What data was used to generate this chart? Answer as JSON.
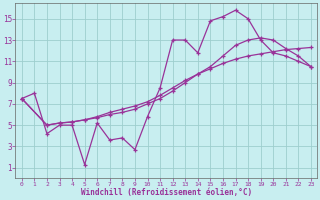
{
  "xlabel": "Windchill (Refroidissement éolien,°C)",
  "bg_color": "#c8eef0",
  "plot_bg": "#c8eef0",
  "line_color": "#993399",
  "grid_color": "#9ecece",
  "xlim": [
    -0.5,
    23.5
  ],
  "ylim": [
    0,
    16.5
  ],
  "yticks": [
    1,
    3,
    5,
    7,
    9,
    11,
    13,
    15
  ],
  "xticks": [
    0,
    1,
    2,
    3,
    4,
    5,
    6,
    7,
    8,
    9,
    10,
    11,
    12,
    13,
    14,
    15,
    16,
    17,
    18,
    19,
    20,
    21,
    22,
    23
  ],
  "line1_x": [
    0,
    1,
    2,
    3,
    4,
    5,
    6,
    7,
    8,
    9,
    10,
    11,
    12,
    13,
    14,
    15,
    16,
    17,
    18,
    19,
    20,
    21,
    22,
    23
  ],
  "line1_y": [
    7.5,
    8.0,
    4.2,
    5.0,
    5.0,
    1.3,
    5.2,
    3.6,
    3.8,
    2.7,
    5.8,
    8.5,
    13.0,
    13.0,
    11.8,
    14.8,
    15.2,
    15.8,
    15.0,
    13.0,
    11.8,
    11.5,
    11.0,
    10.5
  ],
  "line2_x": [
    0,
    2,
    3,
    4,
    5,
    6,
    7,
    8,
    9,
    10,
    11,
    12,
    13,
    14,
    15,
    16,
    17,
    18,
    19,
    20,
    21,
    22,
    23
  ],
  "line2_y": [
    7.5,
    5.0,
    5.2,
    5.3,
    5.5,
    5.7,
    6.0,
    6.2,
    6.5,
    7.0,
    7.5,
    8.2,
    9.0,
    9.8,
    10.5,
    11.5,
    12.5,
    13.0,
    13.2,
    13.0,
    12.2,
    11.5,
    10.5
  ],
  "line3_x": [
    0,
    2,
    3,
    4,
    5,
    6,
    7,
    8,
    9,
    10,
    11,
    12,
    13,
    14,
    15,
    16,
    17,
    18,
    19,
    20,
    21,
    22,
    23
  ],
  "line3_y": [
    7.5,
    5.0,
    5.2,
    5.3,
    5.5,
    5.8,
    6.2,
    6.5,
    6.8,
    7.2,
    7.8,
    8.5,
    9.2,
    9.8,
    10.3,
    10.8,
    11.2,
    11.5,
    11.7,
    11.9,
    12.1,
    12.2,
    12.3
  ],
  "spine_color": "#666666"
}
